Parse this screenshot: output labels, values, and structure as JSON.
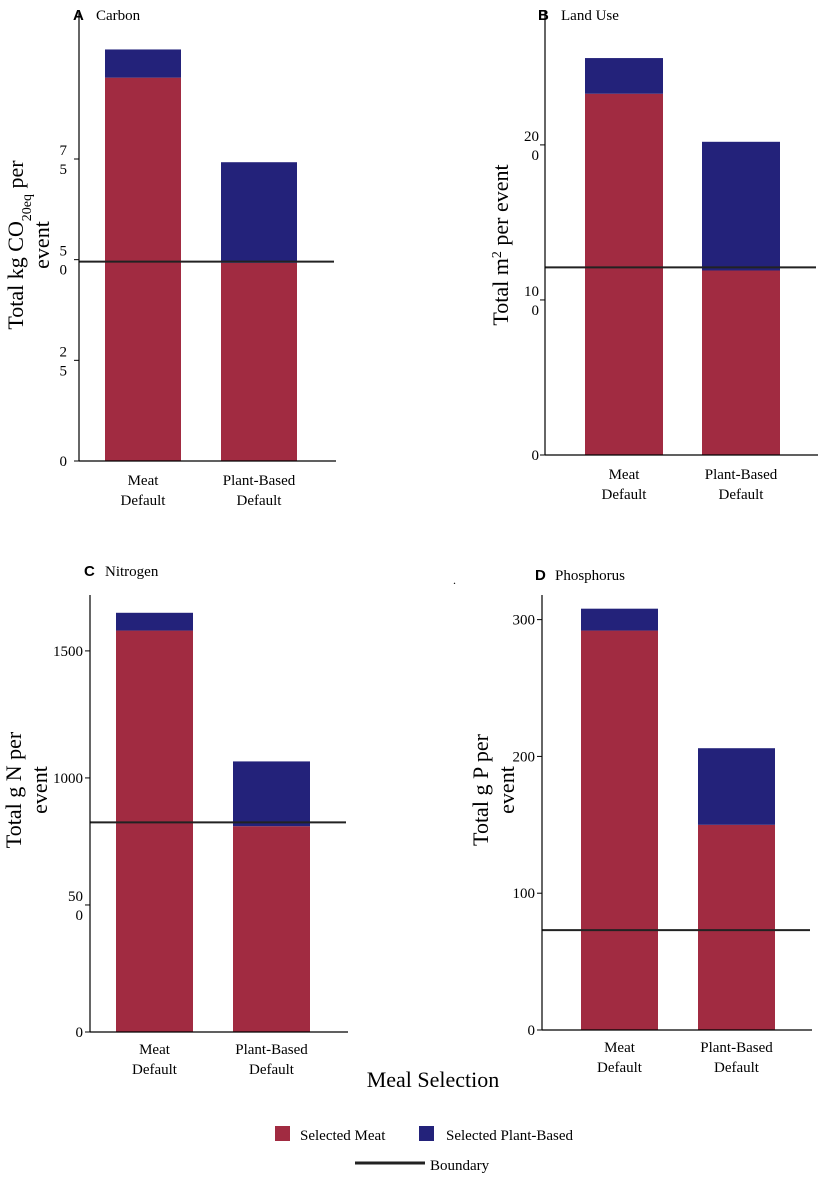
{
  "figure": {
    "x_axis_title": "Meal Selection",
    "legend": {
      "selected_meat": "Selected Meat",
      "selected_plant": "Selected Plant-Based",
      "boundary": "Boundary"
    },
    "colors": {
      "meat": "#A12B41",
      "plant": "#23227A",
      "boundary": "#222222"
    },
    "stray_mark": "."
  },
  "chart_data": [
    {
      "type": "bar",
      "stacked": true,
      "panel_letter": "A",
      "title": "Carbon",
      "ylabel": {
        "pre": "Total kg CO",
        "sub": "20eq",
        "post": " per",
        "line2": "event"
      },
      "categories": [
        [
          "Meat",
          "Default"
        ],
        [
          "Plant-Based",
          "Default"
        ]
      ],
      "series": [
        {
          "name": "Selected Meat",
          "values": [
            95.2,
            49.2
          ]
        },
        {
          "name": "Selected Plant-Based",
          "values": [
            7.0,
            25.0
          ]
        }
      ],
      "boundary": 49.5,
      "ylim": [
        0,
        112
      ],
      "yticks": [
        {
          "value": 0,
          "lines": [
            "0"
          ]
        },
        {
          "value": 25,
          "lines": [
            "2",
            "5"
          ]
        },
        {
          "value": 50,
          "lines": [
            "5",
            "0"
          ]
        },
        {
          "value": 75,
          "lines": [
            "7",
            "5"
          ]
        }
      ]
    },
    {
      "type": "bar",
      "stacked": true,
      "panel_letter": "B",
      "title": "Land Use",
      "ylabel": {
        "pre": "Total m",
        "sup": "2",
        "post": " per event"
      },
      "categories": [
        [
          "Meat",
          "Default"
        ],
        [
          "Plant-Based",
          "Default"
        ]
      ],
      "series": [
        {
          "name": "Selected Meat",
          "values": [
            233,
            119
          ]
        },
        {
          "name": "Selected Plant-Based",
          "values": [
            23,
            83
          ]
        }
      ],
      "boundary": 121,
      "ylim": [
        0,
        287
      ],
      "yticks": [
        {
          "value": 0,
          "lines": [
            "0"
          ]
        },
        {
          "value": 100,
          "lines": [
            "10",
            "0"
          ]
        },
        {
          "value": 200,
          "lines": [
            "20",
            "0"
          ]
        }
      ]
    },
    {
      "type": "bar",
      "stacked": true,
      "panel_letter": "C",
      "title": "Nitrogen",
      "ylabel": {
        "pre": "Total g N per",
        "line2": "event"
      },
      "categories": [
        [
          "Meat",
          "Default"
        ],
        [
          "Plant-Based",
          "Default"
        ]
      ],
      "series": [
        {
          "name": "Selected Meat",
          "values": [
            1580,
            810
          ]
        },
        {
          "name": "Selected Plant-Based",
          "values": [
            70,
            255
          ]
        }
      ],
      "boundary": 825,
      "ylim": [
        0,
        1720
      ],
      "yticks": [
        {
          "value": 0,
          "lines": [
            "0"
          ]
        },
        {
          "value": 500,
          "lines": [
            "50",
            "0"
          ]
        },
        {
          "value": 1000,
          "lines": [
            "1000"
          ]
        },
        {
          "value": 1500,
          "lines": [
            "1500"
          ]
        }
      ]
    },
    {
      "type": "bar",
      "stacked": true,
      "panel_letter": "D",
      "title": "Phosphorus",
      "ylabel": {
        "pre": "Total g P per",
        "line2": "event"
      },
      "categories": [
        [
          "Meat",
          "Default"
        ],
        [
          "Plant-Based",
          "Default"
        ]
      ],
      "series": [
        {
          "name": "Selected Meat",
          "values": [
            292,
            150
          ]
        },
        {
          "name": "Selected Plant-Based",
          "values": [
            16,
            56
          ]
        }
      ],
      "boundary": 73,
      "ylim": [
        0,
        318
      ],
      "yticks": [
        {
          "value": 0,
          "lines": [
            "0"
          ]
        },
        {
          "value": 100,
          "lines": [
            "100"
          ]
        },
        {
          "value": 200,
          "lines": [
            "200"
          ]
        },
        {
          "value": 300,
          "lines": [
            "300"
          ]
        }
      ]
    }
  ]
}
